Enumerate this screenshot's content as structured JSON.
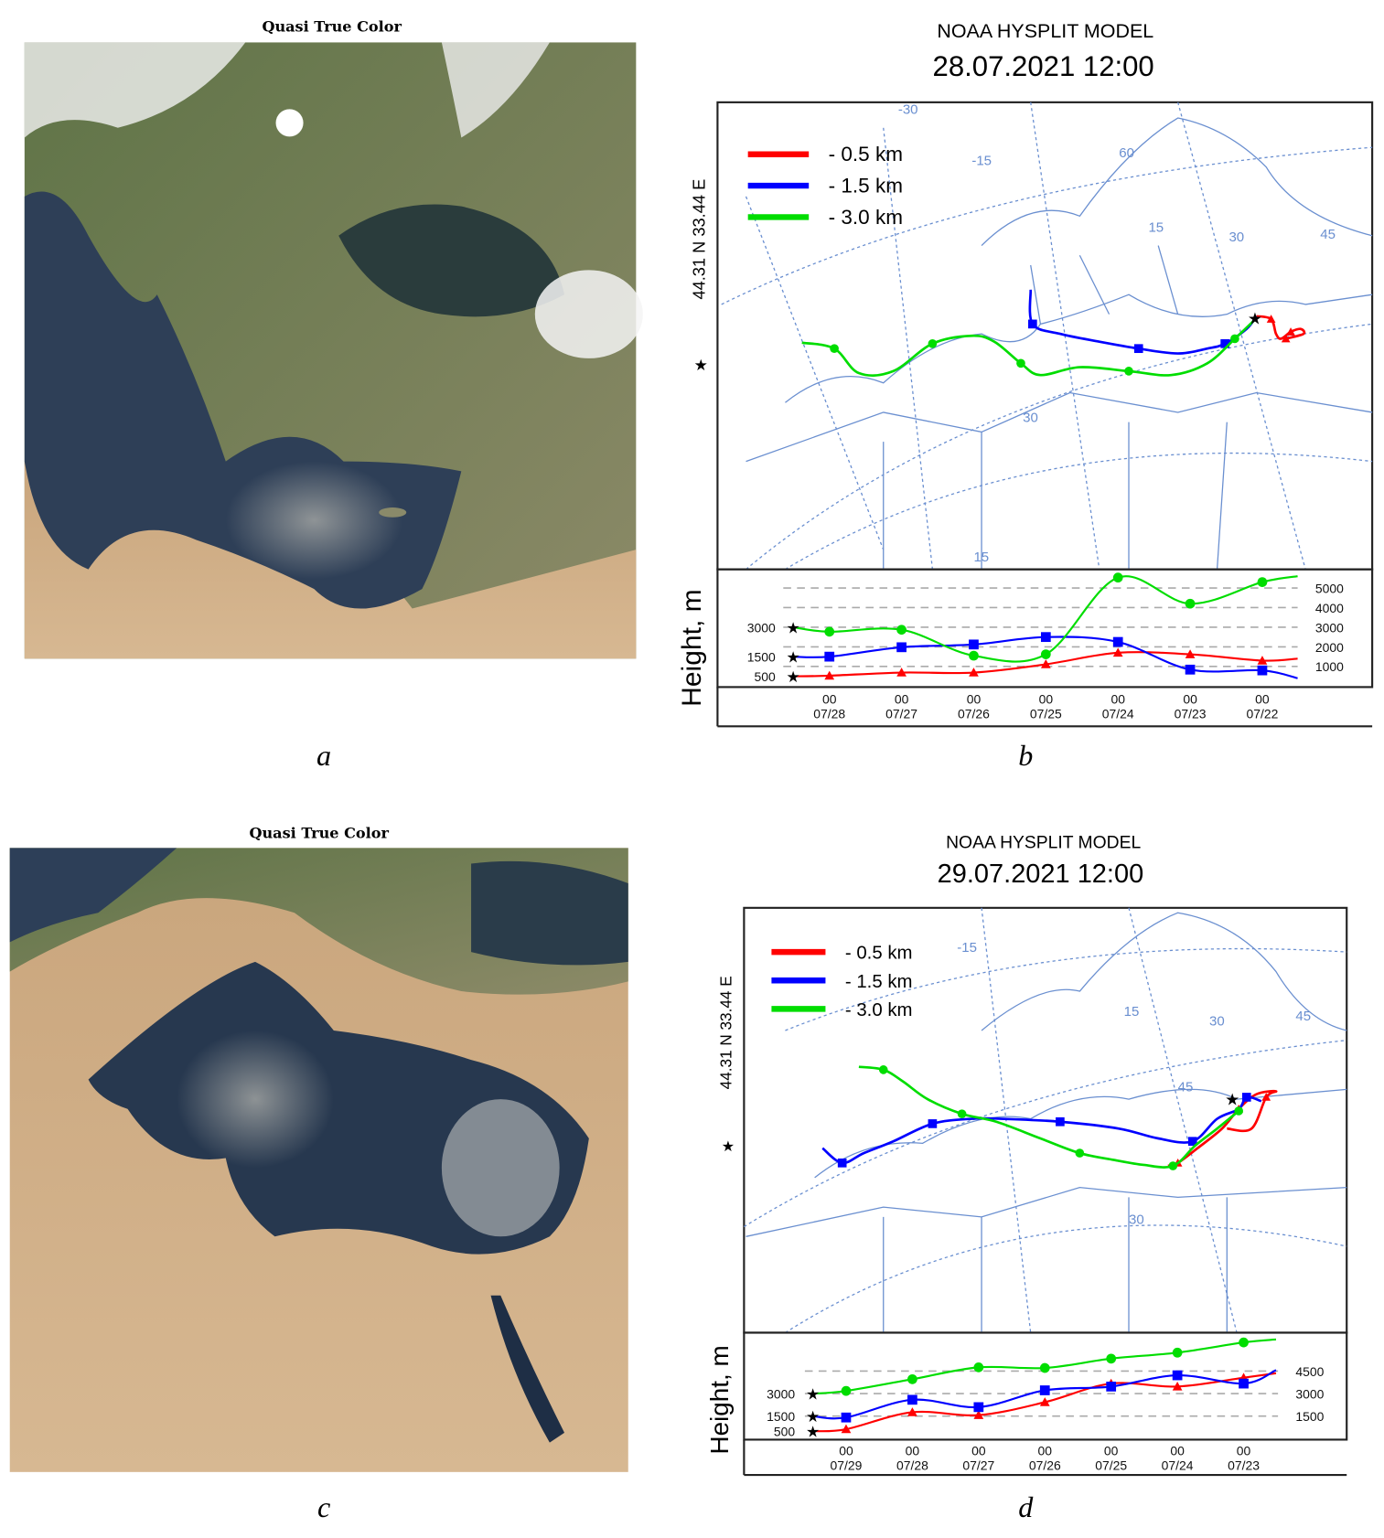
{
  "panels": {
    "a": {
      "label": "a",
      "title": "Quasi True Color"
    },
    "b": {
      "label": "b",
      "model": "NOAA HYSPLIT MODEL",
      "datetime": "28.07.2021 12:00",
      "source": "44.31 N   33.44 E",
      "height_axis": "Height, m",
      "legend": [
        "- 0.5 km",
        "- 1.5 km",
        "- 3.0 km"
      ],
      "grid_labels": [
        "-30",
        "-15",
        "60",
        "15",
        "30",
        "45",
        "30",
        "15"
      ],
      "left_ticks": [
        "3000",
        "1500",
        "500"
      ],
      "right_ticks": [
        "5000",
        "4000",
        "3000",
        "2000",
        "1000"
      ]
    },
    "c": {
      "label": "c",
      "title": "Quasi True Color"
    },
    "d": {
      "label": "d",
      "model": "NOAA HYSPLIT MODEL",
      "datetime": "29.07.2021 12:00",
      "source": "44.31 N   33.44 E",
      "height_axis": "Height, m",
      "legend": [
        "- 0.5 km",
        "- 1.5 km",
        "- 3.0 km"
      ],
      "grid_labels": [
        "-15",
        "15",
        "30",
        "45",
        "45",
        "30"
      ],
      "left_ticks": [
        "3000",
        "1500",
        "500"
      ],
      "right_ticks": [
        "4500",
        "3000",
        "1500"
      ]
    }
  },
  "colors": {
    "0.5 km": "#ff0000",
    "1.5 km": "#0000ff",
    "3.0 km": "#00dd00",
    "map_lines": "#6a8fd0"
  },
  "chart_data": [
    {
      "type": "line",
      "title": "NOAA HYSPLIT MODEL 28.07.2021 12:00",
      "ylabel": "Height, m",
      "categories": [
        "00 07/28",
        "00 07/27",
        "00 07/26",
        "00 07/25",
        "00 07/24",
        "00 07/23",
        "00 07/22"
      ],
      "start_heights": [
        500,
        1500,
        3000
      ],
      "ylim": [
        0,
        5800
      ],
      "series": [
        {
          "name": "- 0.5 km",
          "color": "#ff0000",
          "marker": "triangle",
          "values": [
            530,
            690,
            690,
            1110,
            1700,
            1620,
            1300
          ]
        },
        {
          "name": "- 1.5 km",
          "color": "#0000ff",
          "marker": "square",
          "values": [
            1500,
            1980,
            2120,
            2500,
            2250,
            840,
            800
          ]
        },
        {
          "name": "- 3.0 km",
          "color": "#00dd00",
          "marker": "circle",
          "values": [
            2770,
            2870,
            1550,
            1620,
            5530,
            4200,
            5300
          ]
        }
      ]
    },
    {
      "type": "line",
      "title": "NOAA HYSPLIT MODEL 29.07.2021 12:00",
      "ylabel": "Height, m",
      "categories": [
        "00 07/29",
        "00 07/28",
        "00 07/27",
        "00 07/26",
        "00 07/25",
        "00 07/24",
        "00 07/23"
      ],
      "start_heights": [
        500,
        1500,
        3000
      ],
      "ylim": [
        0,
        6500
      ],
      "series": [
        {
          "name": "- 0.5 km",
          "color": "#ff0000",
          "marker": "triangle",
          "values": [
            630,
            1760,
            1570,
            2430,
            3670,
            3470,
            4060
          ]
        },
        {
          "name": "- 1.5 km",
          "color": "#0000ff",
          "marker": "square",
          "values": [
            1410,
            2590,
            2100,
            3220,
            3470,
            4220,
            3670
          ]
        },
        {
          "name": "- 3.0 km",
          "color": "#00dd00",
          "marker": "circle",
          "values": [
            3180,
            3960,
            4750,
            4710,
            5330,
            5730,
            6410
          ]
        }
      ]
    }
  ]
}
